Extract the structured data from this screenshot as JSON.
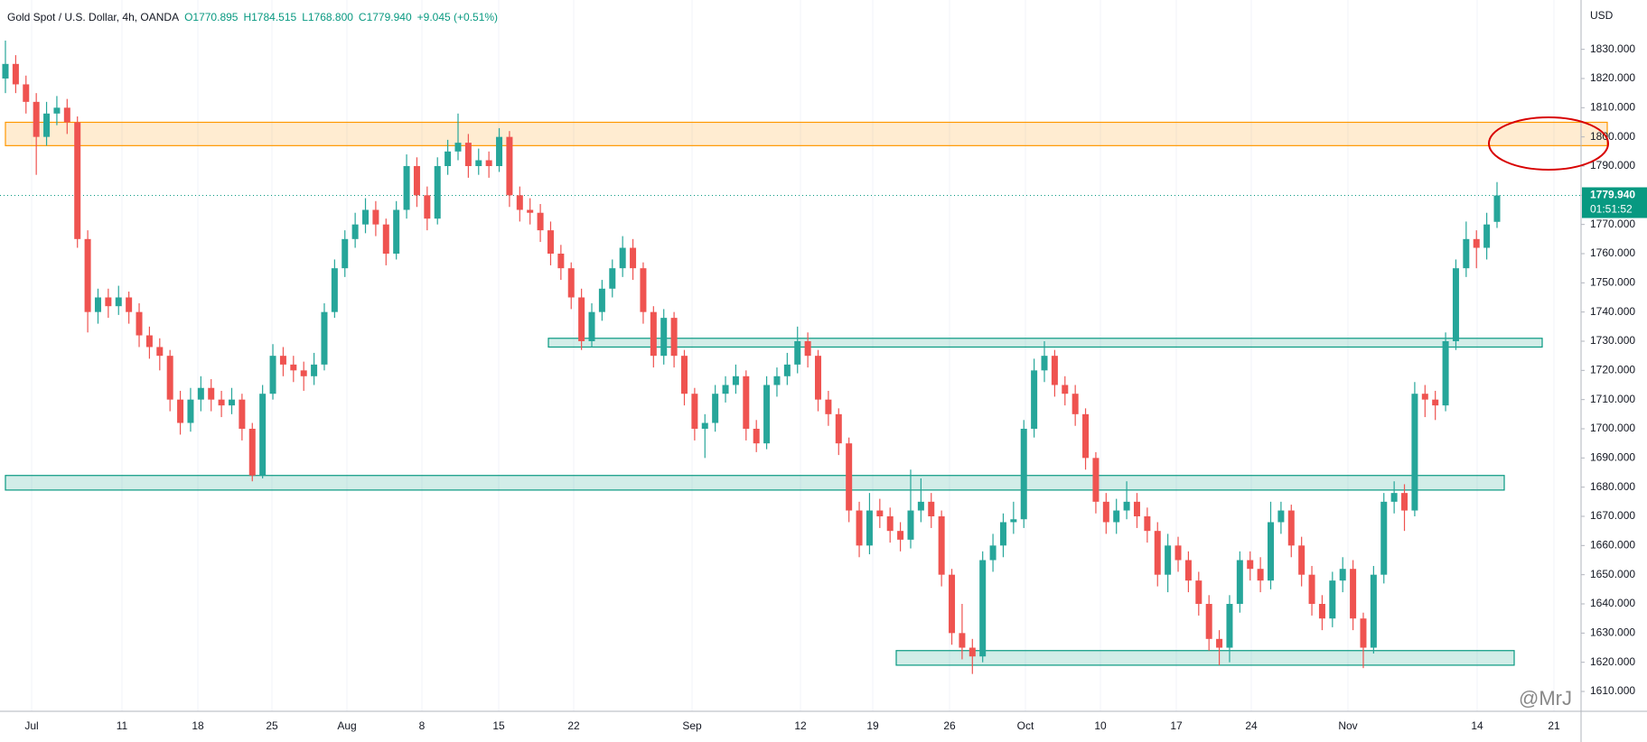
{
  "chart_data": {
    "type": "candlestick",
    "title": "Gold Spot / U.S. Dollar, 4h, OANDA",
    "header_values": [
      "O1770.895",
      "H1784.515",
      "L1768.800",
      "C1779.940",
      "+9.045 (+0.51%)"
    ],
    "axis_unit": "USD",
    "last_price_label": "1779.940",
    "countdown": "01:51:52",
    "last_price": 1779.94,
    "watermark": "@MrJ",
    "up_color": "#26a69a",
    "down_color": "#ef5350",
    "categories": [
      "Jul",
      "11",
      "18",
      "25",
      "Aug",
      "8",
      "15",
      "22",
      "Sep",
      "12",
      "19",
      "26",
      "Oct",
      "10",
      "17",
      "24",
      "Nov",
      "14",
      "21"
    ],
    "ylim": [
      1603.2,
      1846.9
    ],
    "yticks": [
      {
        "value": 1610,
        "label": "1610.000"
      },
      {
        "value": 1620,
        "label": "1620.000"
      },
      {
        "value": 1630,
        "label": "1630.000"
      },
      {
        "value": 1640,
        "label": "1640.000"
      },
      {
        "value": 1650,
        "label": "1650.000"
      },
      {
        "value": 1660,
        "label": "1660.000"
      },
      {
        "value": 1670,
        "label": "1670.000"
      },
      {
        "value": 1680,
        "label": "1680.000"
      },
      {
        "value": 1690,
        "label": "1690.000"
      },
      {
        "value": 1700,
        "label": "1700.000"
      },
      {
        "value": 1710,
        "label": "1710.000"
      },
      {
        "value": 1720,
        "label": "1720.000"
      },
      {
        "value": 1730,
        "label": "1730.000"
      },
      {
        "value": 1740,
        "label": "1740.000"
      },
      {
        "value": 1750,
        "label": "1750.000"
      },
      {
        "value": 1760,
        "label": "1760.000"
      },
      {
        "value": 1770,
        "label": "1770.000"
      },
      {
        "value": 1780,
        "label": "1780.000"
      },
      {
        "value": 1790,
        "label": "1790.000"
      },
      {
        "value": 1800,
        "label": "1800.000"
      },
      {
        "value": 1810,
        "label": "1810.000"
      },
      {
        "value": 1820,
        "label": "1820.000"
      },
      {
        "value": 1830,
        "label": "1830.000"
      }
    ],
    "grid": true,
    "zones": [
      {
        "low": 1797,
        "high": 1805,
        "color": "#ff9800"
      },
      {
        "low": 1728,
        "high": 1731,
        "color": "#089981"
      },
      {
        "low": 1679,
        "high": 1684,
        "color": "#089981"
      },
      {
        "low": 1619,
        "high": 1624,
        "color": "#089981"
      }
    ],
    "candles": [
      [
        1820,
        1833,
        1815,
        1825
      ],
      [
        1825,
        1828,
        1815,
        1818
      ],
      [
        1818,
        1821,
        1808,
        1812
      ],
      [
        1812,
        1815,
        1787,
        1800
      ],
      [
        1800,
        1812,
        1797,
        1808
      ],
      [
        1808,
        1814,
        1804,
        1810
      ],
      [
        1810,
        1813,
        1801,
        1805
      ],
      [
        1805,
        1807,
        1762,
        1765
      ],
      [
        1765,
        1768,
        1733,
        1740
      ],
      [
        1740,
        1748,
        1736,
        1745
      ],
      [
        1745,
        1748,
        1738,
        1742
      ],
      [
        1742,
        1749,
        1739,
        1745
      ],
      [
        1745,
        1747,
        1736,
        1740
      ],
      [
        1740,
        1743,
        1728,
        1732
      ],
      [
        1732,
        1735,
        1724,
        1728
      ],
      [
        1728,
        1731,
        1720,
        1725
      ],
      [
        1725,
        1727,
        1706,
        1710
      ],
      [
        1710,
        1713,
        1698,
        1702
      ],
      [
        1702,
        1714,
        1699,
        1710
      ],
      [
        1710,
        1718,
        1706,
        1714
      ],
      [
        1714,
        1717,
        1706,
        1710
      ],
      [
        1710,
        1713,
        1704,
        1708
      ],
      [
        1708,
        1714,
        1705,
        1710
      ],
      [
        1710,
        1712,
        1696,
        1700
      ],
      [
        1700,
        1702,
        1682,
        1684
      ],
      [
        1684,
        1715,
        1683,
        1712
      ],
      [
        1712,
        1729,
        1710,
        1725
      ],
      [
        1725,
        1728,
        1718,
        1722
      ],
      [
        1722,
        1725,
        1716,
        1720
      ],
      [
        1720,
        1723,
        1713,
        1718
      ],
      [
        1718,
        1726,
        1715,
        1722
      ],
      [
        1722,
        1743,
        1720,
        1740
      ],
      [
        1740,
        1758,
        1738,
        1755
      ],
      [
        1755,
        1768,
        1752,
        1765
      ],
      [
        1765,
        1774,
        1762,
        1770
      ],
      [
        1770,
        1779,
        1767,
        1775
      ],
      [
        1775,
        1778,
        1766,
        1770
      ],
      [
        1770,
        1772,
        1756,
        1760
      ],
      [
        1760,
        1778,
        1758,
        1775
      ],
      [
        1775,
        1794,
        1772,
        1790
      ],
      [
        1790,
        1793,
        1776,
        1780
      ],
      [
        1780,
        1783,
        1768,
        1772
      ],
      [
        1772,
        1793,
        1770,
        1790
      ],
      [
        1790,
        1799,
        1787,
        1795
      ],
      [
        1795,
        1808,
        1792,
        1798
      ],
      [
        1798,
        1801,
        1786,
        1790
      ],
      [
        1790,
        1796,
        1787,
        1792
      ],
      [
        1792,
        1795,
        1786,
        1790
      ],
      [
        1790,
        1803,
        1788,
        1800
      ],
      [
        1800,
        1802,
        1776,
        1780
      ],
      [
        1780,
        1783,
        1771,
        1775
      ],
      [
        1775,
        1779,
        1770,
        1774
      ],
      [
        1774,
        1777,
        1764,
        1768
      ],
      [
        1768,
        1771,
        1756,
        1760
      ],
      [
        1760,
        1763,
        1751,
        1755
      ],
      [
        1755,
        1757,
        1741,
        1745
      ],
      [
        1745,
        1748,
        1727,
        1730
      ],
      [
        1730,
        1743,
        1728,
        1740
      ],
      [
        1740,
        1751,
        1737,
        1748
      ],
      [
        1748,
        1758,
        1745,
        1755
      ],
      [
        1755,
        1766,
        1752,
        1762
      ],
      [
        1762,
        1765,
        1751,
        1755
      ],
      [
        1755,
        1757,
        1736,
        1740
      ],
      [
        1740,
        1742,
        1721,
        1725
      ],
      [
        1725,
        1741,
        1722,
        1738
      ],
      [
        1738,
        1740,
        1721,
        1725
      ],
      [
        1725,
        1727,
        1708,
        1712
      ],
      [
        1712,
        1714,
        1696,
        1700
      ],
      [
        1700,
        1705,
        1690,
        1702
      ],
      [
        1702,
        1715,
        1699,
        1712
      ],
      [
        1712,
        1718,
        1709,
        1715
      ],
      [
        1715,
        1722,
        1712,
        1718
      ],
      [
        1718,
        1720,
        1696,
        1700
      ],
      [
        1700,
        1703,
        1692,
        1695
      ],
      [
        1695,
        1718,
        1693,
        1715
      ],
      [
        1715,
        1721,
        1711,
        1718
      ],
      [
        1718,
        1726,
        1715,
        1722
      ],
      [
        1722,
        1735,
        1719,
        1730
      ],
      [
        1730,
        1733,
        1721,
        1725
      ],
      [
        1725,
        1727,
        1706,
        1710
      ],
      [
        1710,
        1713,
        1701,
        1705
      ],
      [
        1705,
        1707,
        1691,
        1695
      ],
      [
        1695,
        1697,
        1668,
        1672
      ],
      [
        1672,
        1675,
        1656,
        1660
      ],
      [
        1660,
        1678,
        1657,
        1672
      ],
      [
        1672,
        1676,
        1666,
        1670
      ],
      [
        1670,
        1673,
        1661,
        1665
      ],
      [
        1665,
        1668,
        1658,
        1662
      ],
      [
        1662,
        1686,
        1659,
        1672
      ],
      [
        1672,
        1683,
        1668,
        1675
      ],
      [
        1675,
        1678,
        1666,
        1670
      ],
      [
        1670,
        1672,
        1646,
        1650
      ],
      [
        1650,
        1652,
        1626,
        1630
      ],
      [
        1630,
        1640,
        1621,
        1625
      ],
      [
        1625,
        1628,
        1616,
        1622
      ],
      [
        1622,
        1658,
        1620,
        1655
      ],
      [
        1655,
        1664,
        1651,
        1660
      ],
      [
        1660,
        1671,
        1656,
        1668
      ],
      [
        1668,
        1675,
        1664,
        1669
      ],
      [
        1669,
        1703,
        1666,
        1700
      ],
      [
        1700,
        1724,
        1697,
        1720
      ],
      [
        1720,
        1730,
        1716,
        1725
      ],
      [
        1725,
        1727,
        1711,
        1715
      ],
      [
        1715,
        1718,
        1708,
        1712
      ],
      [
        1712,
        1715,
        1701,
        1705
      ],
      [
        1705,
        1707,
        1686,
        1690
      ],
      [
        1690,
        1692,
        1671,
        1675
      ],
      [
        1675,
        1678,
        1664,
        1668
      ],
      [
        1668,
        1676,
        1664,
        1672
      ],
      [
        1672,
        1682,
        1669,
        1675
      ],
      [
        1675,
        1678,
        1666,
        1670
      ],
      [
        1670,
        1673,
        1661,
        1665
      ],
      [
        1665,
        1668,
        1646,
        1650
      ],
      [
        1650,
        1664,
        1644,
        1660
      ],
      [
        1660,
        1663,
        1651,
        1655
      ],
      [
        1655,
        1658,
        1644,
        1648
      ],
      [
        1648,
        1651,
        1636,
        1640
      ],
      [
        1640,
        1643,
        1624,
        1628
      ],
      [
        1628,
        1631,
        1619,
        1625
      ],
      [
        1625,
        1643,
        1620,
        1640
      ],
      [
        1640,
        1658,
        1637,
        1655
      ],
      [
        1655,
        1658,
        1648,
        1652
      ],
      [
        1652,
        1656,
        1644,
        1648
      ],
      [
        1648,
        1675,
        1645,
        1668
      ],
      [
        1668,
        1675,
        1664,
        1672
      ],
      [
        1672,
        1674,
        1656,
        1660
      ],
      [
        1660,
        1663,
        1646,
        1650
      ],
      [
        1650,
        1653,
        1636,
        1640
      ],
      [
        1640,
        1643,
        1631,
        1635
      ],
      [
        1635,
        1651,
        1632,
        1648
      ],
      [
        1648,
        1656,
        1644,
        1652
      ],
      [
        1652,
        1655,
        1631,
        1635
      ],
      [
        1635,
        1637,
        1618,
        1625
      ],
      [
        1625,
        1653,
        1623,
        1650
      ],
      [
        1650,
        1678,
        1647,
        1675
      ],
      [
        1675,
        1682,
        1671,
        1678
      ],
      [
        1678,
        1681,
        1665,
        1672
      ],
      [
        1672,
        1716,
        1670,
        1712
      ],
      [
        1712,
        1715,
        1704,
        1710
      ],
      [
        1710,
        1713,
        1703,
        1708
      ],
      [
        1708,
        1733,
        1706,
        1730
      ],
      [
        1730,
        1758,
        1727,
        1755
      ],
      [
        1755,
        1771,
        1752,
        1765
      ],
      [
        1765,
        1768,
        1755,
        1762
      ],
      [
        1762,
        1774,
        1758,
        1770
      ],
      [
        1770.895,
        1784.515,
        1768.8,
        1779.94
      ]
    ]
  }
}
